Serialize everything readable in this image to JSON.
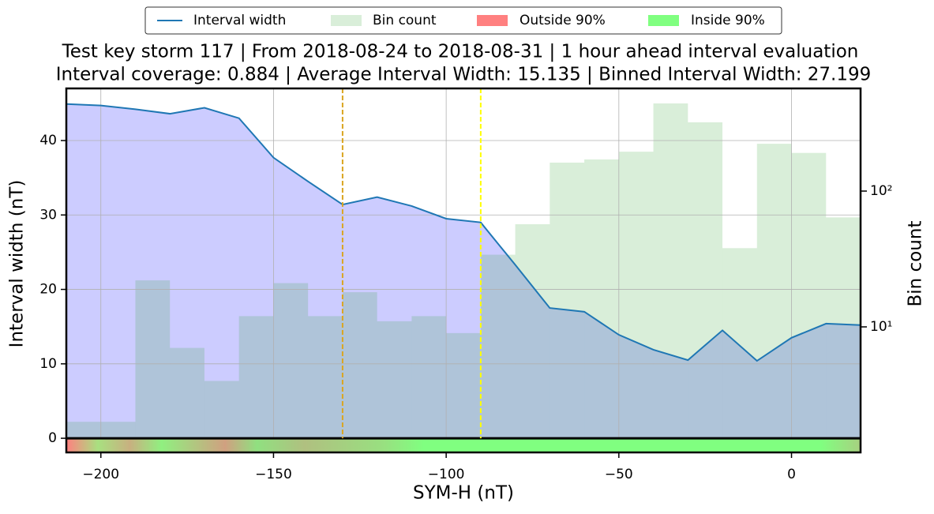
{
  "chart_data": {
    "type": "line",
    "title": "Test key storm 117 | From 2018-08-24 to 2018-08-31 | 1 hour ahead interval evaluation",
    "subtitle": "Interval coverage: 0.884 | Average Interval Width: 15.135 | Binned Interval Width: 27.199",
    "xlabel": "SYM-H (nT)",
    "ylabel": "Interval width (nT)",
    "y2label": "Bin count",
    "x": [
      -210,
      -200,
      -190,
      -180,
      -170,
      -160,
      -150,
      -140,
      -130,
      -120,
      -110,
      -100,
      -90,
      -80,
      -70,
      -60,
      -50,
      -40,
      -30,
      -20,
      -10,
      0,
      10,
      20
    ],
    "series": [
      {
        "name": "Interval width",
        "color": "#1f77b4",
        "fill": "#ccccff",
        "values": [
          44.9,
          44.7,
          44.2,
          43.6,
          44.4,
          43.0,
          37.7,
          34.5,
          31.4,
          32.4,
          31.2,
          29.5,
          29.0,
          23.3,
          17.5,
          17.0,
          13.9,
          11.9,
          10.5,
          14.5,
          10.4,
          13.5,
          15.4,
          15.2
        ]
      },
      {
        "name": "Bin count",
        "type": "histogram",
        "axis": "y2",
        "color": "#2ca02c",
        "opacity": 0.18,
        "bins": [
          -210,
          -200,
          -190,
          -180,
          -170,
          -160,
          -150,
          -140,
          -130,
          -120,
          -110,
          -100,
          -90,
          -80,
          -70,
          -60,
          -50,
          -40,
          -30,
          -20,
          -10,
          0,
          10,
          20
        ],
        "values": [
          2,
          2,
          22,
          7,
          4,
          12,
          21,
          12,
          18,
          11,
          12,
          9,
          34,
          57,
          162,
          171,
          195,
          442,
          321,
          38,
          223,
          191,
          64
        ]
      }
    ],
    "legend_extra": [
      {
        "name": "Outside 90%",
        "color": "#ff8080"
      },
      {
        "name": "Inside 90%",
        "color": "#80ff80"
      }
    ],
    "legend_position": "top",
    "vlines": [
      {
        "x": -130,
        "color": "#daa520"
      },
      {
        "x": -90,
        "color": "#ffff00"
      }
    ],
    "xlim": [
      -210,
      20
    ],
    "xticks": [
      {
        "value": -200,
        "label": "−200"
      },
      {
        "value": -150,
        "label": "−150"
      },
      {
        "value": -100,
        "label": "−100"
      },
      {
        "value": -50,
        "label": "−50"
      },
      0
    ],
    "ylim": [
      -1.9,
      47
    ],
    "yticks": [
      0,
      10,
      20,
      30,
      40
    ],
    "y2lim": [
      1.19,
      570
    ],
    "y2ticks": [
      {
        "value": 10,
        "label": "10¹"
      },
      {
        "value": 100,
        "label": "10²"
      }
    ],
    "y2log": true,
    "grid": true
  }
}
